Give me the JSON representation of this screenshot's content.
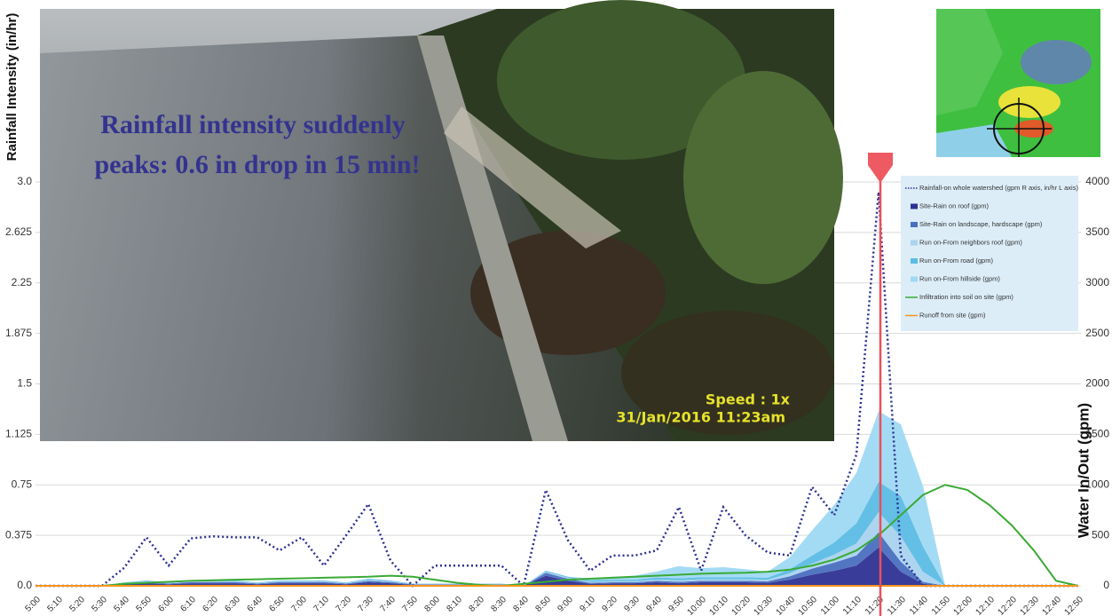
{
  "chart_data": {
    "type": "area",
    "ylabel": "Rainfall Intensity (in/hr)",
    "y2label": "Water In/Out (gpm)",
    "annotations": [
      "Rainfall intensity suddenly",
      "peaks: 0.6 in drop in 15 min!"
    ],
    "video_overlay": [
      "Speed : 1x",
      "31/Jan/2016 11:23am"
    ],
    "categories": [
      "5:00",
      "5:10",
      "5:20",
      "5:30",
      "5:40",
      "5:50",
      "6:00",
      "6:10",
      "6:20",
      "6:30",
      "6:40",
      "6:50",
      "7:00",
      "7:10",
      "7:20",
      "7:30",
      "7:40",
      "7:50",
      "8:00",
      "8:10",
      "8:20",
      "8:30",
      "8:40",
      "8:50",
      "9:00",
      "9:10",
      "9:20",
      "9:30",
      "9:40",
      "9:50",
      "10:00",
      "10:10",
      "10:20",
      "10:30",
      "10:40",
      "10:50",
      "11:00",
      "11:10",
      "11:20",
      "11:30",
      "11:40",
      "11:50",
      "12:00",
      "12:10",
      "12:20",
      "12:30",
      "12:40",
      "12:50"
    ],
    "ylim": [
      0,
      3
    ],
    "yticks": [
      {
        "value": 0,
        "label": "0.0"
      },
      0.375,
      0.75,
      1.125,
      1.5,
      1.875,
      2.25,
      2.625,
      {
        "value": 3,
        "label": "3.0"
      }
    ],
    "y2lim": [
      0,
      4000
    ],
    "y2ticks": [
      0,
      500,
      1000,
      1500,
      2000,
      2500,
      3000,
      3500,
      4000
    ],
    "grid": true,
    "legend": "upper right",
    "series": [
      {
        "name": "Rainfall-on whole watershed (gpm R axis, in/hr L axis)",
        "color": "#2e3192",
        "style": "dotted",
        "axis": "y2",
        "values": [
          0,
          0,
          0,
          0,
          180,
          480,
          200,
          470,
          490,
          480,
          480,
          350,
          480,
          200,
          500,
          810,
          250,
          0,
          200,
          200,
          200,
          200,
          0,
          950,
          450,
          150,
          300,
          300,
          350,
          780,
          150,
          780,
          500,
          330,
          300,
          980,
          700,
          1300,
          3900,
          300,
          0,
          0,
          0,
          0,
          0,
          0,
          0,
          0
        ]
      },
      {
        "name": "Site-Rain on roof (gpm)",
        "color": "#2e3192",
        "style": "area",
        "axis": "y2",
        "values": [
          0,
          0,
          0,
          0,
          15,
          25,
          15,
          25,
          25,
          25,
          15,
          25,
          25,
          25,
          15,
          35,
          25,
          10,
          10,
          10,
          10,
          10,
          0,
          100,
          50,
          20,
          25,
          25,
          35,
          25,
          35,
          35,
          35,
          30,
          60,
          110,
          150,
          200,
          380,
          140,
          20,
          0,
          0,
          0,
          0,
          0,
          0,
          0
        ]
      },
      {
        "name": "Site-Rain on landscape, hardscape (gpm)",
        "color": "#4a6fbf",
        "style": "area",
        "axis": "y2",
        "values": [
          0,
          0,
          0,
          0,
          8,
          12,
          8,
          12,
          12,
          12,
          8,
          12,
          12,
          12,
          8,
          15,
          12,
          5,
          5,
          5,
          5,
          5,
          0,
          30,
          20,
          10,
          10,
          10,
          15,
          15,
          15,
          15,
          15,
          15,
          35,
          60,
          80,
          100,
          150,
          100,
          20,
          0,
          0,
          0,
          0,
          0,
          0,
          0
        ]
      },
      {
        "name": "Run on-From neighbors roof (gpm)",
        "color": "#a9d3ee",
        "style": "area",
        "axis": "y2",
        "values": [
          0,
          0,
          0,
          0,
          5,
          8,
          5,
          8,
          8,
          8,
          5,
          8,
          8,
          8,
          5,
          10,
          8,
          3,
          3,
          3,
          3,
          3,
          0,
          10,
          10,
          10,
          10,
          10,
          12,
          15,
          15,
          15,
          15,
          15,
          30,
          50,
          80,
          120,
          200,
          250,
          100,
          0,
          0,
          0,
          0,
          0,
          0,
          0
        ]
      },
      {
        "name": "Run on-From road (gpm)",
        "color": "#5bbce4",
        "style": "area",
        "axis": "y2",
        "values": [
          0,
          0,
          0,
          0,
          5,
          8,
          5,
          8,
          8,
          8,
          5,
          8,
          8,
          8,
          5,
          10,
          8,
          3,
          3,
          3,
          3,
          3,
          0,
          10,
          10,
          15,
          15,
          15,
          20,
          20,
          20,
          20,
          20,
          20,
          40,
          80,
          120,
          200,
          300,
          400,
          250,
          0,
          0,
          0,
          0,
          0,
          0,
          0
        ]
      },
      {
        "name": "Run on-From hillside (gpm)",
        "color": "#9fd9f3",
        "style": "area",
        "axis": "y2",
        "values": [
          0,
          0,
          0,
          0,
          0,
          0,
          0,
          0,
          0,
          0,
          0,
          0,
          0,
          0,
          0,
          0,
          0,
          0,
          0,
          0,
          0,
          0,
          0,
          0,
          0,
          20,
          30,
          40,
          60,
          120,
          90,
          100,
          80,
          60,
          120,
          250,
          370,
          500,
          700,
          710,
          600,
          0,
          0,
          0,
          0,
          0,
          0,
          0
        ]
      },
      {
        "name": "Infiltration into soil on site (gpm)",
        "color": "#3aaa35",
        "style": "line",
        "axis": "y2",
        "values": [
          0,
          0,
          0,
          0,
          20,
          30,
          40,
          50,
          55,
          60,
          65,
          70,
          75,
          80,
          85,
          90,
          100,
          90,
          60,
          30,
          10,
          0,
          20,
          40,
          60,
          70,
          80,
          90,
          100,
          110,
          120,
          125,
          130,
          140,
          160,
          200,
          260,
          350,
          500,
          700,
          900,
          1000,
          950,
          800,
          600,
          350,
          50,
          0
        ]
      },
      {
        "name": "Runoff from site (gpm)",
        "color": "#f7941d",
        "style": "line",
        "axis": "y2",
        "values": [
          0,
          0,
          0,
          0,
          0,
          0,
          0,
          0,
          0,
          0,
          0,
          0,
          0,
          0,
          0,
          0,
          0,
          0,
          0,
          0,
          0,
          0,
          0,
          0,
          0,
          0,
          0,
          0,
          0,
          0,
          0,
          0,
          0,
          0,
          0,
          0,
          0,
          0,
          0,
          0,
          0,
          0,
          0,
          0,
          0,
          0,
          0,
          0
        ]
      }
    ]
  }
}
